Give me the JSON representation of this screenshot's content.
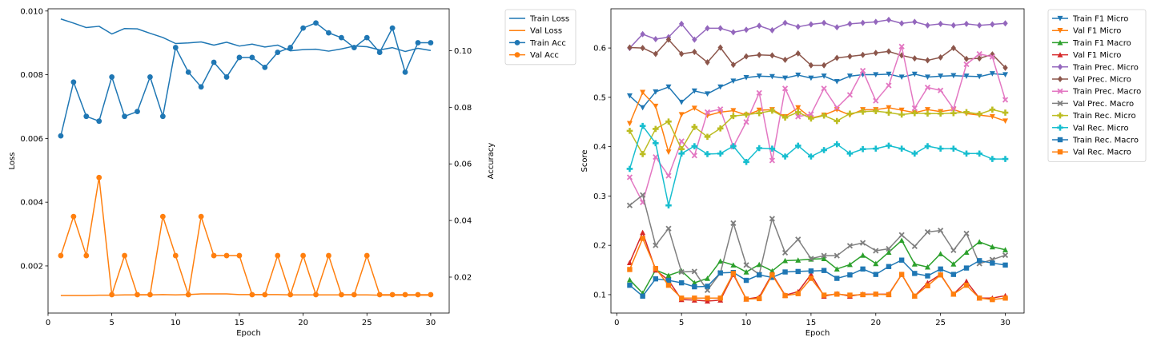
{
  "chart_data": [
    {
      "type": "line",
      "xlabel": "Epoch",
      "ylabel": "Loss",
      "y2label": "Accuracy",
      "x": [
        1,
        2,
        3,
        4,
        5,
        6,
        7,
        8,
        9,
        10,
        11,
        12,
        13,
        14,
        15,
        16,
        17,
        18,
        19,
        20,
        21,
        22,
        23,
        24,
        25,
        26,
        27,
        28,
        29,
        30
      ],
      "xlim": [
        0,
        31.45
      ],
      "xticks": [
        "0",
        "5",
        "10",
        "15",
        "20",
        "25",
        "30"
      ],
      "xtick_values": [
        0,
        5,
        10,
        15,
        20,
        25,
        30
      ],
      "ylim": [
        0.00052,
        0.01007
      ],
      "yticks": [
        "0.002",
        "0.004",
        "0.006",
        "0.008",
        "0.010"
      ],
      "ytick_values": [
        0.002,
        0.004,
        0.006,
        0.008,
        0.01
      ],
      "y2lim": [
        0.0073,
        0.1148
      ],
      "y2ticks": [
        "0.02",
        "0.04",
        "0.06",
        "0.08",
        "0.10"
      ],
      "y2tick_values": [
        0.02,
        0.04,
        0.06,
        0.08,
        0.1
      ],
      "legend_position": "outside-right",
      "series": [
        {
          "name": "Train Loss",
          "axis": "left",
          "color": "#1f77b4",
          "marker": "none",
          "values": [
            0.00975,
            0.00962,
            0.00948,
            0.00952,
            0.00928,
            0.00945,
            0.00944,
            0.0093,
            0.00917,
            0.00898,
            0.009,
            0.00903,
            0.00893,
            0.00902,
            0.0089,
            0.00896,
            0.00887,
            0.00893,
            0.00875,
            0.00879,
            0.0088,
            0.00874,
            0.00881,
            0.0089,
            0.00888,
            0.00878,
            0.00885,
            0.00873,
            0.00883,
            0.00876
          ]
        },
        {
          "name": "Val Loss",
          "axis": "left",
          "color": "#ff7f0e",
          "marker": "none",
          "values": [
            0.00107,
            0.00107,
            0.00107,
            0.00108,
            0.00108,
            0.00109,
            0.00109,
            0.00109,
            0.0011,
            0.00109,
            0.0011,
            0.00112,
            0.00112,
            0.00112,
            0.0011,
            0.0011,
            0.0011,
            0.0011,
            0.00109,
            0.00109,
            0.00109,
            0.00109,
            0.00109,
            0.00109,
            0.00109,
            0.00108,
            0.00108,
            0.00108,
            0.00108,
            0.00108
          ]
        },
        {
          "name": "Train Acc",
          "axis": "right",
          "color": "#1f77b4",
          "marker": "o",
          "values": [
            0.0699,
            0.0889,
            0.0768,
            0.0751,
            0.0907,
            0.0768,
            0.0785,
            0.0907,
            0.0768,
            0.1011,
            0.0924,
            0.0872,
            0.0959,
            0.0907,
            0.0976,
            0.0976,
            0.0941,
            0.0994,
            0.1011,
            0.108,
            0.1098,
            0.1063,
            0.1046,
            0.1011,
            0.1046,
            0.0994,
            0.108,
            0.0924,
            0.1028,
            0.1028
          ]
        },
        {
          "name": "Val Acc",
          "axis": "right",
          "color": "#ff7f0e",
          "marker": "o",
          "values": [
            0.0276,
            0.0414,
            0.0276,
            0.0552,
            0.0138,
            0.0276,
            0.0138,
            0.0138,
            0.0414,
            0.0276,
            0.0138,
            0.0414,
            0.0276,
            0.0276,
            0.0276,
            0.0138,
            0.0138,
            0.0276,
            0.0138,
            0.0276,
            0.0138,
            0.0276,
            0.0138,
            0.0138,
            0.0276,
            0.0138,
            0.0138,
            0.0138,
            0.0138,
            0.0138
          ]
        }
      ]
    },
    {
      "type": "line",
      "xlabel": "Epoch",
      "ylabel": "Score",
      "x": [
        1,
        2,
        3,
        4,
        5,
        6,
        7,
        8,
        9,
        10,
        11,
        12,
        13,
        14,
        15,
        16,
        17,
        18,
        19,
        20,
        21,
        22,
        23,
        24,
        25,
        26,
        27,
        28,
        29,
        30
      ],
      "xlim": [
        -0.45,
        31.45
      ],
      "xticks": [
        "0",
        "5",
        "10",
        "15",
        "20",
        "25",
        "30"
      ],
      "xtick_values": [
        0,
        5,
        10,
        15,
        20,
        25,
        30
      ],
      "ylim": [
        0.0627,
        0.6795
      ],
      "yticks": [
        "0.1",
        "0.2",
        "0.3",
        "0.4",
        "0.5",
        "0.6"
      ],
      "ytick_values": [
        0.1,
        0.2,
        0.3,
        0.4,
        0.5,
        0.6
      ],
      "legend_position": "outside-right",
      "series": [
        {
          "name": "Train F1 Micro",
          "color": "#1f77b4",
          "marker": "v",
          "values": [
            0.503,
            0.479,
            0.511,
            0.521,
            0.49,
            0.513,
            0.507,
            0.521,
            0.533,
            0.54,
            0.543,
            0.542,
            0.539,
            0.545,
            0.539,
            0.543,
            0.532,
            0.543,
            0.546,
            0.546,
            0.547,
            0.541,
            0.547,
            0.541,
            0.543,
            0.544,
            0.543,
            0.542,
            0.548,
            0.546
          ]
        },
        {
          "name": "Val F1 Micro",
          "color": "#ff7f0e",
          "marker": "v",
          "values": [
            0.447,
            0.51,
            0.482,
            0.389,
            0.465,
            0.478,
            0.463,
            0.47,
            0.473,
            0.464,
            0.474,
            0.475,
            0.461,
            0.479,
            0.458,
            0.464,
            0.475,
            0.464,
            0.475,
            0.475,
            0.479,
            0.474,
            0.469,
            0.475,
            0.471,
            0.475,
            0.467,
            0.464,
            0.461,
            0.452
          ]
        },
        {
          "name": "Train F1 Macro",
          "color": "#2ca02c",
          "marker": "^",
          "values": [
            0.13,
            0.103,
            0.15,
            0.139,
            0.148,
            0.124,
            0.133,
            0.168,
            0.16,
            0.146,
            0.161,
            0.148,
            0.169,
            0.17,
            0.172,
            0.173,
            0.152,
            0.161,
            0.18,
            0.163,
            0.186,
            0.21,
            0.162,
            0.156,
            0.183,
            0.162,
            0.186,
            0.207,
            0.197,
            0.191
          ]
        },
        {
          "name": "Val F1 Micro",
          "color": "#d62728",
          "marker": "^",
          "values": [
            0.165,
            0.226,
            0.15,
            0.129,
            0.09,
            0.089,
            0.087,
            0.089,
            0.141,
            0.091,
            0.095,
            0.142,
            0.099,
            0.106,
            0.141,
            0.097,
            0.102,
            0.097,
            0.101,
            0.101,
            0.101,
            0.141,
            0.097,
            0.124,
            0.141,
            0.101,
            0.127,
            0.093,
            0.093,
            0.098
          ]
        },
        {
          "name": "Train Prec. Micro",
          "color": "#9467bd",
          "marker": "D",
          "values": [
            0.6,
            0.628,
            0.618,
            0.622,
            0.649,
            0.617,
            0.64,
            0.64,
            0.632,
            0.637,
            0.645,
            0.636,
            0.651,
            0.643,
            0.648,
            0.651,
            0.642,
            0.649,
            0.651,
            0.653,
            0.657,
            0.65,
            0.653,
            0.646,
            0.649,
            0.646,
            0.649,
            0.646,
            0.648,
            0.65
          ]
        },
        {
          "name": "Val Prec. Micro",
          "color": "#8c564b",
          "marker": "D",
          "values": [
            0.601,
            0.6,
            0.588,
            0.617,
            0.588,
            0.592,
            0.571,
            0.601,
            0.566,
            0.583,
            0.586,
            0.585,
            0.576,
            0.589,
            0.565,
            0.565,
            0.58,
            0.583,
            0.586,
            0.59,
            0.593,
            0.585,
            0.579,
            0.575,
            0.581,
            0.6,
            0.578,
            0.579,
            0.587,
            0.56
          ]
        },
        {
          "name": "Train Prec. Macro",
          "color": "#e377c2",
          "marker": "X",
          "values": [
            0.338,
            0.287,
            0.379,
            0.341,
            0.411,
            0.382,
            0.47,
            0.476,
            0.4,
            0.45,
            0.509,
            0.372,
            0.518,
            0.461,
            0.466,
            0.518,
            0.479,
            0.505,
            0.554,
            0.493,
            0.524,
            0.603,
            0.478,
            0.52,
            0.514,
            0.477,
            0.567,
            0.588,
            0.582,
            0.495
          ]
        },
        {
          "name": "Val Prec. Macro",
          "color": "#7f7f7f",
          "marker": "X",
          "values": [
            0.281,
            0.302,
            0.2,
            0.234,
            0.146,
            0.147,
            0.109,
            0.144,
            0.245,
            0.16,
            0.141,
            0.254,
            0.185,
            0.212,
            0.173,
            0.179,
            0.179,
            0.199,
            0.205,
            0.189,
            0.193,
            0.221,
            0.198,
            0.227,
            0.23,
            0.19,
            0.224,
            0.163,
            0.171,
            0.18
          ]
        },
        {
          "name": "Train Rec. Micro",
          "color": "#bcbd22",
          "marker": "P",
          "values": [
            0.432,
            0.385,
            0.436,
            0.451,
            0.395,
            0.44,
            0.42,
            0.437,
            0.462,
            0.465,
            0.468,
            0.473,
            0.459,
            0.47,
            0.457,
            0.463,
            0.452,
            0.467,
            0.471,
            0.472,
            0.469,
            0.465,
            0.468,
            0.467,
            0.467,
            0.468,
            0.47,
            0.466,
            0.475,
            0.469
          ]
        },
        {
          "name": "Val Rec. Micro",
          "color": "#17becf",
          "marker": "P",
          "values": [
            0.355,
            0.442,
            0.407,
            0.281,
            0.386,
            0.401,
            0.385,
            0.386,
            0.401,
            0.369,
            0.397,
            0.396,
            0.38,
            0.402,
            0.38,
            0.393,
            0.405,
            0.386,
            0.395,
            0.396,
            0.402,
            0.396,
            0.386,
            0.401,
            0.396,
            0.396,
            0.386,
            0.386,
            0.375,
            0.375
          ]
        },
        {
          "name": "Train Rec. Macro",
          "color": "#1f77b4",
          "marker": "s",
          "values": [
            0.119,
            0.097,
            0.132,
            0.129,
            0.124,
            0.116,
            0.117,
            0.144,
            0.145,
            0.129,
            0.14,
            0.135,
            0.146,
            0.147,
            0.148,
            0.149,
            0.133,
            0.14,
            0.152,
            0.141,
            0.157,
            0.17,
            0.143,
            0.138,
            0.152,
            0.141,
            0.154,
            0.169,
            0.164,
            0.16
          ]
        },
        {
          "name": "Val Rec. Macro",
          "color": "#ff7f0e",
          "marker": "s",
          "values": [
            0.151,
            0.214,
            0.153,
            0.119,
            0.093,
            0.093,
            0.093,
            0.093,
            0.143,
            0.091,
            0.092,
            0.14,
            0.098,
            0.102,
            0.133,
            0.099,
            0.101,
            0.099,
            0.1,
            0.101,
            0.1,
            0.141,
            0.097,
            0.118,
            0.14,
            0.101,
            0.119,
            0.093,
            0.09,
            0.093
          ]
        }
      ]
    }
  ]
}
